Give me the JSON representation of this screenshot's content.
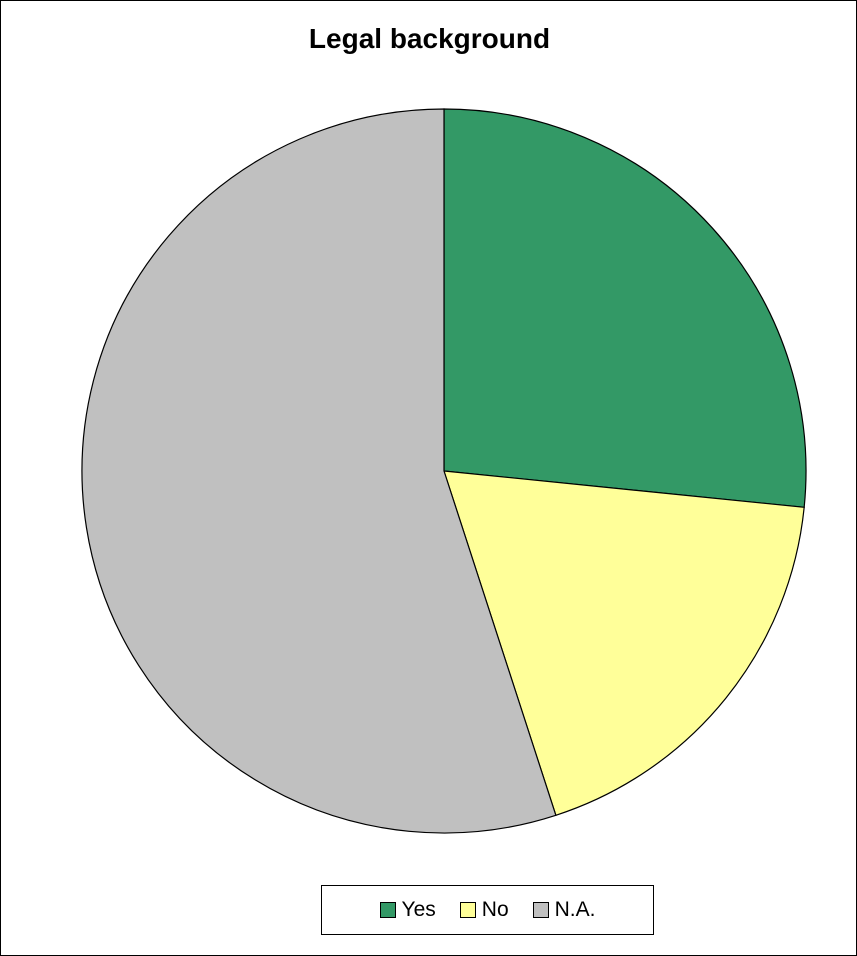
{
  "chart_data": {
    "type": "pie",
    "title": "Legal background",
    "categories": [
      "Yes",
      "No",
      "N.A."
    ],
    "values": [
      26.6,
      18.4,
      55.0
    ],
    "colors": [
      "#339966",
      "#FFFF99",
      "#C0C0C0"
    ],
    "legend_position": "bottom"
  }
}
